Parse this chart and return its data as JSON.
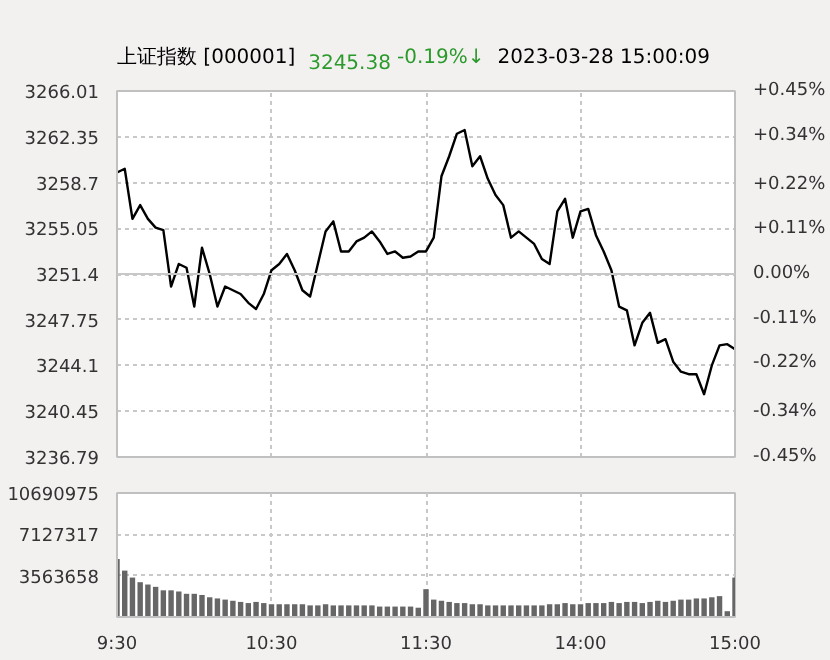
{
  "chart_data": [
    {
      "type": "line",
      "title": "上证指数 [000001]",
      "annotations": [
        "3245.38",
        "-0.19%↓",
        "2023-03-28 15:00:09"
      ],
      "categories": [
        null,
        null,
        null,
        null,
        null,
        null,
        null,
        null,
        null,
        null,
        null,
        null,
        null,
        null,
        null,
        null,
        null,
        null,
        null,
        null,
        null,
        null,
        null,
        null,
        null,
        null,
        null,
        null,
        null,
        null,
        null,
        null,
        null,
        null,
        null,
        null,
        null,
        null,
        null,
        null,
        null,
        null,
        null,
        null,
        null,
        null,
        null,
        null,
        null,
        null,
        null,
        null,
        null,
        null,
        null,
        null,
        null,
        null,
        null,
        null,
        null,
        null,
        null,
        null,
        null,
        null,
        null,
        null,
        null,
        null,
        null,
        null,
        null,
        null,
        null,
        null,
        null,
        null,
        null,
        null,
        null
      ],
      "series": [
        {
          "color": "#000000",
          "values": [
            3259.5,
            3259.8,
            3255.8,
            3256.9,
            3255.8,
            3255.1,
            3254.9,
            3250.4,
            3252.2,
            3251.9,
            3248.8,
            3253.5,
            3251.4,
            3248.8,
            3250.4,
            3250.1,
            3249.8,
            3249.1,
            3248.6,
            3249.8,
            3251.7,
            3252.2,
            3253.0,
            3251.7,
            3250.1,
            3249.6,
            3252.2,
            3254.8,
            3255.6,
            3253.2,
            3253.2,
            3254.0,
            3254.3,
            3254.8,
            3254.0,
            3253.0,
            3253.2,
            3252.7,
            3252.8,
            3253.2,
            3253.2,
            3254.3,
            3259.2,
            3260.8,
            3262.6,
            3262.9,
            3260.0,
            3260.8,
            3259.0,
            3257.7,
            3256.9,
            3254.3,
            3254.8,
            3254.3,
            3253.8,
            3252.6,
            3252.2,
            3256.4,
            3257.4,
            3254.3,
            3256.4,
            3256.6,
            3254.5,
            3253.2,
            3251.7,
            3248.8,
            3248.5,
            3245.7,
            3247.5,
            3248.3,
            3245.9,
            3246.2,
            3244.4,
            3243.6,
            3243.4,
            3243.4,
            3241.8,
            3244.1,
            3245.7,
            3245.8,
            3245.4
          ]
        }
      ],
      "ylim": [
        3236.79,
        3266.01
      ],
      "yticks": [
        3236.79,
        3240.45,
        3244.1,
        3247.75,
        3251.4,
        3255.05,
        3258.7,
        3262.35,
        3266.01
      ],
      "y2lim": [
        -0.45,
        0.45
      ],
      "y2ticks": [
        {
          "value": -0.45,
          "label": "-0.45%"
        },
        {
          "value": -0.34,
          "label": "-0.34%"
        },
        {
          "value": -0.22,
          "label": "-0.22%"
        },
        {
          "value": -0.11,
          "label": "-0.11%"
        },
        {
          "value": 0,
          "label": "0.00%"
        },
        {
          "value": 0.11,
          "label": "+0.11%"
        },
        {
          "value": 0.22,
          "label": "+0.22%"
        },
        {
          "value": 0.34,
          "label": "+0.34%"
        },
        {
          "value": 0.45,
          "label": "+0.45%"
        }
      ],
      "ref_lines": [
        {
          "axis": "y",
          "value": 3251.4,
          "color": "#c8c8c8"
        }
      ],
      "grid": true,
      "tick_labels": "y",
      "line_style": "solid"
    },
    {
      "type": "bar",
      "categories": [
        "9:30",
        null,
        null,
        null,
        null,
        null,
        null,
        null,
        null,
        null,
        null,
        null,
        null,
        null,
        null,
        null,
        null,
        null,
        null,
        null,
        "10:30",
        null,
        null,
        null,
        null,
        null,
        null,
        null,
        null,
        null,
        null,
        null,
        null,
        null,
        null,
        null,
        null,
        null,
        null,
        null,
        "11:30",
        null,
        null,
        null,
        null,
        null,
        null,
        null,
        null,
        null,
        null,
        null,
        null,
        null,
        null,
        null,
        null,
        null,
        null,
        null,
        "14:00",
        null,
        null,
        null,
        null,
        null,
        null,
        null,
        null,
        null,
        null,
        null,
        null,
        null,
        null,
        null,
        null,
        null,
        null,
        null,
        "15:00"
      ],
      "series": [
        {
          "color": "#666666",
          "values": [
            5000000,
            4000000,
            3400000,
            3000000,
            2800000,
            2600000,
            2300000,
            2300000,
            2200000,
            2000000,
            2000000,
            1900000,
            1700000,
            1600000,
            1500000,
            1400000,
            1300000,
            1200000,
            1300000,
            1200000,
            1100000,
            1100000,
            1100000,
            1100000,
            1100000,
            1000000,
            1000000,
            1100000,
            1000000,
            1000000,
            1000000,
            1000000,
            1000000,
            1000000,
            900000,
            900000,
            900000,
            900000,
            900000,
            800000,
            2400000,
            1500000,
            1400000,
            1300000,
            1200000,
            1200000,
            1100000,
            1100000,
            1000000,
            1000000,
            1000000,
            1000000,
            1000000,
            1000000,
            1000000,
            1000000,
            1100000,
            1100000,
            1200000,
            1100000,
            1100000,
            1200000,
            1200000,
            1200000,
            1300000,
            1200000,
            1300000,
            1300000,
            1200000,
            1300000,
            1400000,
            1300000,
            1400000,
            1500000,
            1500000,
            1600000,
            1600000,
            1700000,
            1800000,
            500000,
            3400000
          ]
        }
      ],
      "ylim": [
        0,
        10690975
      ],
      "yticks": [
        {
          "value": 0,
          "label": null
        },
        3563658,
        7127317,
        10690975
      ],
      "grid": true
    }
  ]
}
